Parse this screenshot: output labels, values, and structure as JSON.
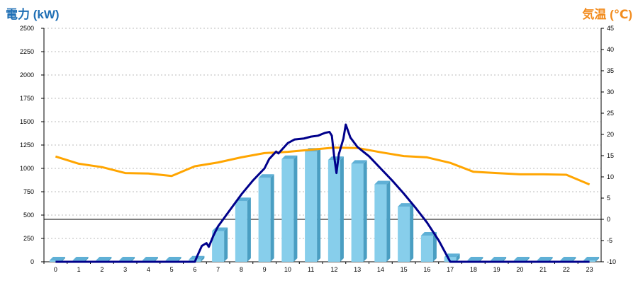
{
  "chart_data": {
    "type": "bar+line",
    "left_axis_title": "電力 (kW)",
    "right_axis_title": "気温 (℃)",
    "categories": [
      "0",
      "1",
      "2",
      "3",
      "4",
      "5",
      "6",
      "7",
      "8",
      "9",
      "10",
      "11",
      "12",
      "13",
      "14",
      "15",
      "16",
      "17",
      "18",
      "19",
      "20",
      "21",
      "22",
      "23"
    ],
    "y_left": {
      "min": 0,
      "max": 2500,
      "ticks": [
        "0",
        "250",
        "500",
        "750",
        "1000",
        "1250",
        "1500",
        "1750",
        "2000",
        "2250",
        "2500"
      ]
    },
    "y_right": {
      "min": -10,
      "max": 45,
      "ticks": [
        "-10",
        "-5",
        "0",
        "5",
        "10",
        "15",
        "20",
        "25",
        "30",
        "35",
        "40",
        "45"
      ]
    },
    "grid": true,
    "bars": {
      "values": [
        0,
        0,
        0,
        0,
        0,
        0,
        25,
        330,
        650,
        900,
        1100,
        1180,
        1090,
        1050,
        830,
        590,
        280,
        50,
        0,
        0,
        0,
        0,
        0,
        0
      ],
      "color": "#87ceeb",
      "side_color": "#4a9ec2",
      "top_color": "#5fb0d6"
    },
    "power_line": {
      "color": "#00008b",
      "points": [
        [
          0,
          0
        ],
        [
          6,
          0
        ],
        [
          6.1,
          60
        ],
        [
          6.3,
          170
        ],
        [
          6.5,
          200
        ],
        [
          6.6,
          160
        ],
        [
          6.8,
          280
        ],
        [
          7,
          380
        ],
        [
          7.5,
          550
        ],
        [
          8,
          720
        ],
        [
          8.5,
          870
        ],
        [
          9,
          1000
        ],
        [
          9.2,
          1100
        ],
        [
          9.5,
          1180
        ],
        [
          9.6,
          1160
        ],
        [
          10,
          1270
        ],
        [
          10.3,
          1310
        ],
        [
          10.7,
          1320
        ],
        [
          11,
          1340
        ],
        [
          11.3,
          1350
        ],
        [
          11.6,
          1380
        ],
        [
          11.8,
          1390
        ],
        [
          11.9,
          1350
        ],
        [
          12,
          1130
        ],
        [
          12.1,
          950
        ],
        [
          12.2,
          1150
        ],
        [
          12.4,
          1320
        ],
        [
          12.5,
          1470
        ],
        [
          12.7,
          1330
        ],
        [
          13,
          1230
        ],
        [
          13.5,
          1130
        ],
        [
          14,
          1000
        ],
        [
          14.5,
          870
        ],
        [
          15,
          730
        ],
        [
          15.5,
          580
        ],
        [
          16,
          420
        ],
        [
          16.5,
          230
        ],
        [
          17,
          0
        ],
        [
          23,
          0
        ]
      ]
    },
    "temp_line": {
      "color": "#ffa500",
      "values": [
        14.8,
        13.1,
        12.3,
        10.9,
        10.8,
        10.2,
        12.5,
        13.4,
        14.6,
        15.6,
        15.9,
        16.4,
        16.9,
        16.8,
        15.8,
        14.9,
        14.6,
        13.3,
        11.2,
        10.9,
        10.6,
        10.6,
        10.5,
        8.2
      ]
    },
    "zero_line_temp": 0
  }
}
